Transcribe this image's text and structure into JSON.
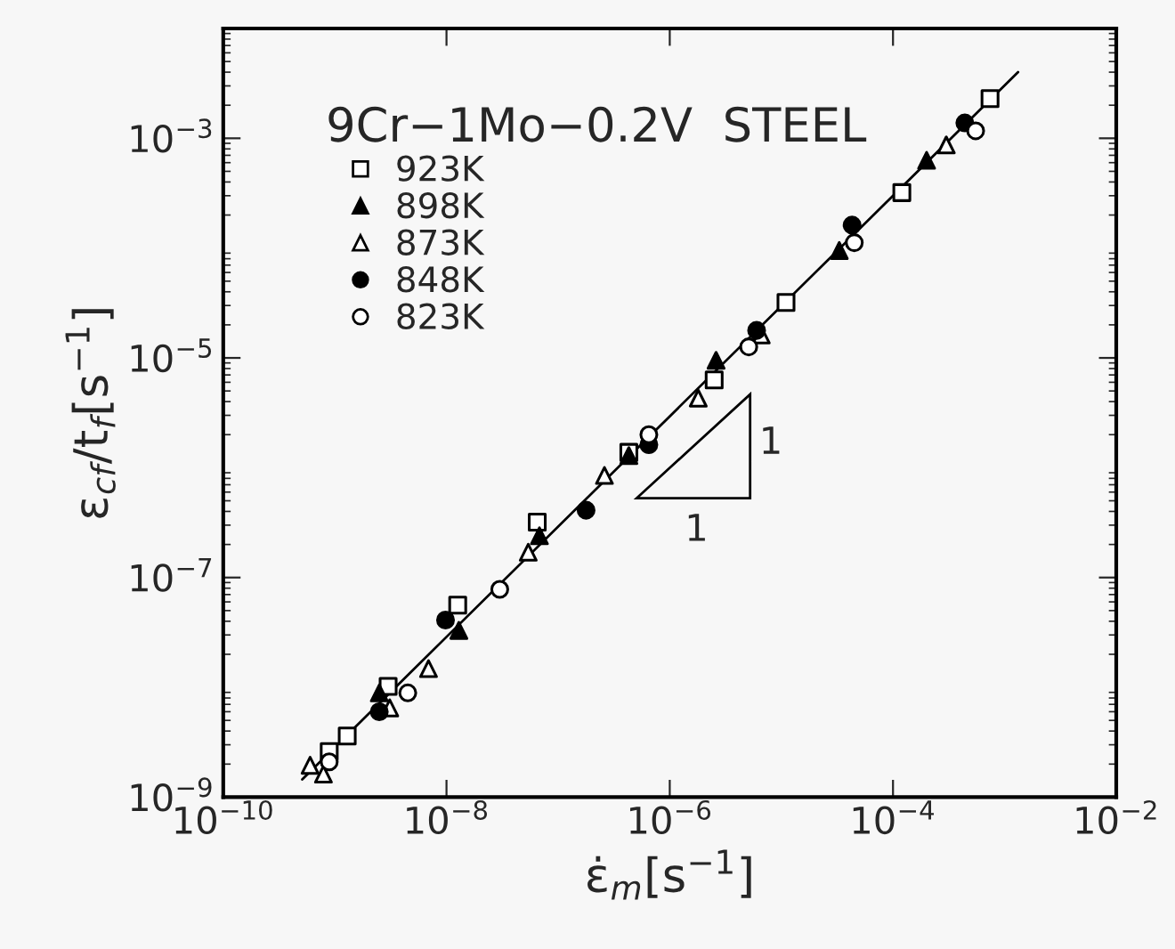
{
  "chart_data": {
    "type": "scatter",
    "legend_title": "9Cr−1Mo−0.2V  STEEL",
    "xlabel": "ε̇$_{m}$[s$^{−1}$]",
    "ylabel": "ε$_{cf}$/t$_{f}$[s$^{−1}$]",
    "log": "xy",
    "xlim": [
      1e-10,
      0.01
    ],
    "ylim": [
      1e-09,
      0.01
    ],
    "xticks": [
      {
        "value": 1e-10,
        "label": "10$^{−10}$"
      },
      {
        "value": 1e-08,
        "label": "10$^{−8}$"
      },
      {
        "value": 1e-06,
        "label": "10$^{−6}$"
      },
      {
        "value": 0.0001,
        "label": "10$^{−4}$"
      },
      {
        "value": 0.01,
        "label": "10$^{−2}$"
      }
    ],
    "yticks": [
      {
        "value": 1e-09,
        "label": "10$^{−9}$"
      },
      {
        "value": 1e-07,
        "label": "10$^{−7}$"
      },
      {
        "value": 1e-05,
        "label": "10$^{−5}$"
      },
      {
        "value": 0.001,
        "label": "10$^{−3}$"
      }
    ],
    "grid": false,
    "legend": "top left",
    "annotations": [
      "1",
      "1"
    ],
    "series": [
      {
        "name": "923K",
        "color": "#ffffff",
        "marker": "square",
        "x": [
          0.00074,
          0.00012,
          1.1e-05,
          2.5e-06,
          4.3e-07,
          6.5e-08,
          1.26e-08,
          3e-09,
          1.29e-09,
          8.9e-10
        ],
        "values": [
          0.0023,
          0.00032,
          3.2e-05,
          6.3e-06,
          1.38e-06,
          3.2e-07,
          5.6e-08,
          1.02e-08,
          3.6e-09,
          2.6e-09
        ]
      },
      {
        "name": "898K",
        "color": "#000000",
        "marker": "triangle",
        "x": [
          0.0002,
          3.3e-05,
          2.6e-06,
          4.3e-07,
          6.8e-08,
          1.29e-08,
          2.5e-09
        ],
        "values": [
          0.00063,
          9.5e-05,
          9.5e-06,
          1.29e-06,
          2.4e-07,
          3.3e-08,
          8.9e-09
        ]
      },
      {
        "name": "873K",
        "color": "#ffffff",
        "marker": "triangle",
        "x": [
          0.0003,
          6.6e-06,
          1.8e-06,
          2.6e-07,
          5.4e-08,
          6.9e-09,
          3.1e-09,
          6e-10,
          7.9e-10
        ],
        "values": [
          0.00087,
          1.62e-05,
          4.3e-06,
          8.5e-07,
          1.7e-07,
          1.48e-08,
          6.5e-09,
          1.95e-09,
          1.62e-09
        ]
      },
      {
        "name": "848K",
        "color": "#000000",
        "marker": "circle",
        "x": [
          0.00044,
          4.3e-05,
          6e-06,
          6.5e-07,
          1.78e-07,
          9.8e-09,
          2.5e-09
        ],
        "values": [
          0.00138,
          0.000162,
          1.78e-05,
          1.62e-06,
          4.1e-07,
          4.1e-08,
          6e-09
        ]
      },
      {
        "name": "823K",
        "color": "#ffffff",
        "marker": "circle",
        "x": [
          0.00055,
          4.5e-05,
          5.1e-06,
          6.5e-07,
          3e-08,
          4.5e-09,
          8.9e-10
        ],
        "values": [
          0.00117,
          0.000112,
          1.26e-05,
          2e-06,
          7.8e-08,
          8.9e-09,
          2.1e-09
        ]
      },
      {
        "type": "line",
        "color": "#000000",
        "marker": "none",
        "x": [
          5.1e-10,
          0.00132
        ],
        "values": [
          1.45e-09,
          0.004
        ]
      }
    ]
  }
}
